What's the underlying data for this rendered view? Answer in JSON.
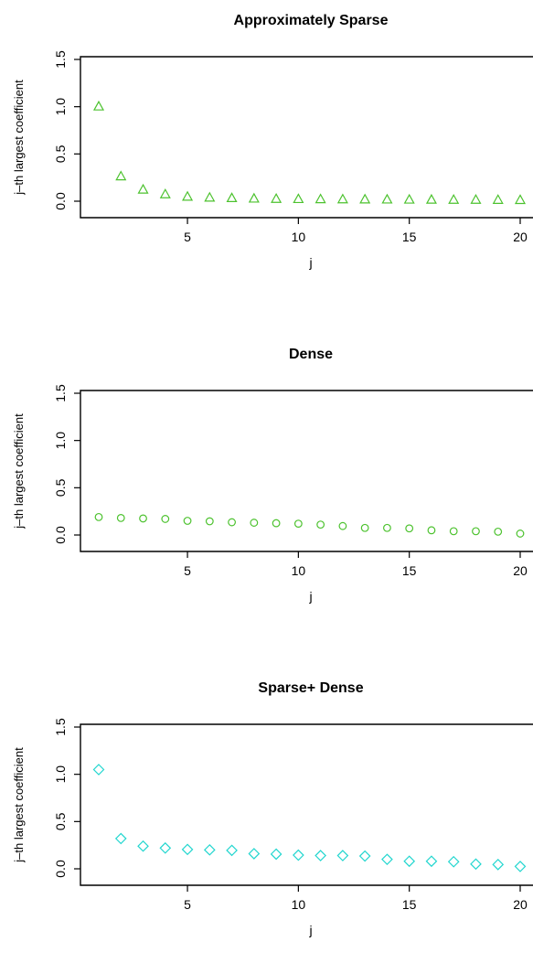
{
  "chart_data": [
    {
      "type": "scatter",
      "title": "Approximately Sparse",
      "xlabel": "j",
      "ylabel": "j–th largest coefficient",
      "xlim": [
        1,
        20
      ],
      "ylim": [
        0,
        1.5
      ],
      "xticks": [
        5,
        10,
        15,
        20
      ],
      "yticks": [
        0.0,
        0.5,
        1.0,
        1.5
      ],
      "ytick_labels": [
        "0.0",
        "0.5",
        "1.0",
        "1.5"
      ],
      "marker": "triangle",
      "color": "#4cc22e",
      "x": [
        1,
        2,
        3,
        4,
        5,
        6,
        7,
        8,
        9,
        10,
        11,
        12,
        13,
        14,
        15,
        16,
        17,
        18,
        19,
        20
      ],
      "y": [
        1.0,
        0.26,
        0.12,
        0.07,
        0.045,
        0.035,
        0.03,
        0.025,
        0.022,
        0.02,
        0.018,
        0.017,
        0.016,
        0.015,
        0.014,
        0.013,
        0.012,
        0.012,
        0.011,
        0.01
      ]
    },
    {
      "type": "scatter",
      "title": "Dense",
      "xlabel": "j",
      "ylabel": "j–th largest coefficient",
      "xlim": [
        1,
        20
      ],
      "ylim": [
        0,
        1.5
      ],
      "xticks": [
        5,
        10,
        15,
        20
      ],
      "yticks": [
        0.0,
        0.5,
        1.0,
        1.5
      ],
      "ytick_labels": [
        "0.0",
        "0.5",
        "1.0",
        "1.5"
      ],
      "marker": "circle",
      "color": "#4cc22e",
      "x": [
        1,
        2,
        3,
        4,
        5,
        6,
        7,
        8,
        9,
        10,
        11,
        12,
        13,
        14,
        15,
        16,
        17,
        18,
        19,
        20
      ],
      "y": [
        0.19,
        0.18,
        0.175,
        0.17,
        0.15,
        0.145,
        0.135,
        0.13,
        0.125,
        0.12,
        0.11,
        0.095,
        0.075,
        0.075,
        0.07,
        0.05,
        0.04,
        0.04,
        0.035,
        0.015
      ]
    },
    {
      "type": "scatter",
      "title": "Sparse+ Dense",
      "xlabel": "j",
      "ylabel": "j–th largest coefficient",
      "xlim": [
        1,
        20
      ],
      "ylim": [
        0,
        1.5
      ],
      "xticks": [
        5,
        10,
        15,
        20
      ],
      "yticks": [
        0.0,
        0.5,
        1.0,
        1.5
      ],
      "ytick_labels": [
        "0.0",
        "0.5",
        "1.0",
        "1.5"
      ],
      "marker": "diamond",
      "color": "#22d6cf",
      "x": [
        1,
        2,
        3,
        4,
        5,
        6,
        7,
        8,
        9,
        10,
        11,
        12,
        13,
        14,
        15,
        16,
        17,
        18,
        19,
        20
      ],
      "y": [
        1.05,
        0.32,
        0.24,
        0.22,
        0.205,
        0.2,
        0.195,
        0.16,
        0.155,
        0.145,
        0.14,
        0.14,
        0.135,
        0.1,
        0.08,
        0.08,
        0.075,
        0.05,
        0.045,
        0.025
      ]
    }
  ]
}
